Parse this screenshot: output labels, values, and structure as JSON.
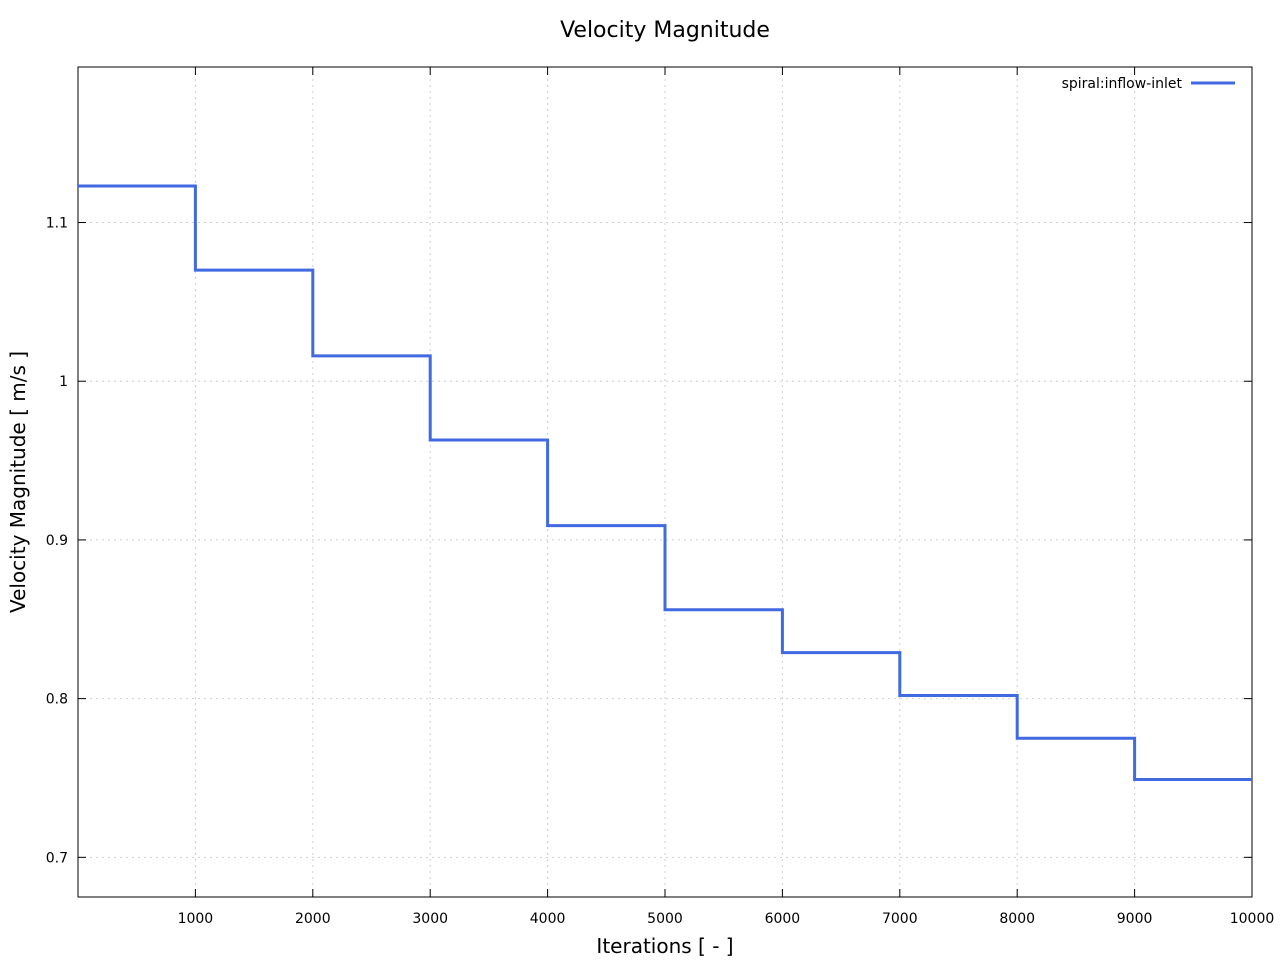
{
  "chart_data": {
    "type": "line",
    "title": "Velocity Magnitude",
    "xlabel": "Iterations [ - ]",
    "ylabel": "Velocity Magnitude [ m/s ]",
    "xlim": [
      0,
      10000
    ],
    "ylim": [
      0.675,
      1.198
    ],
    "x_ticks": [
      1000,
      2000,
      3000,
      4000,
      5000,
      6000,
      7000,
      8000,
      9000,
      10000
    ],
    "x_tick_labels": [
      "1000",
      "2000",
      "3000",
      "4000",
      "5000",
      "6000",
      "7000",
      "8000",
      "9000",
      "10000"
    ],
    "y_ticks": [
      0.7,
      0.8,
      0.9,
      1.0,
      1.1
    ],
    "y_tick_labels": [
      "0.7",
      "0.8",
      "0.9",
      "1",
      "1.1"
    ],
    "grid": true,
    "legend_position": "top-right",
    "line_style": "step",
    "series": [
      {
        "name": "spiral:inflow-inlet",
        "color": "#4169e1",
        "x": [
          0,
          1000,
          2000,
          3000,
          4000,
          5000,
          6000,
          7000,
          8000,
          9000,
          10000
        ],
        "values": [
          1.123,
          1.07,
          1.016,
          0.963,
          0.909,
          0.856,
          0.829,
          0.802,
          0.775,
          0.749,
          0.749
        ]
      }
    ]
  }
}
